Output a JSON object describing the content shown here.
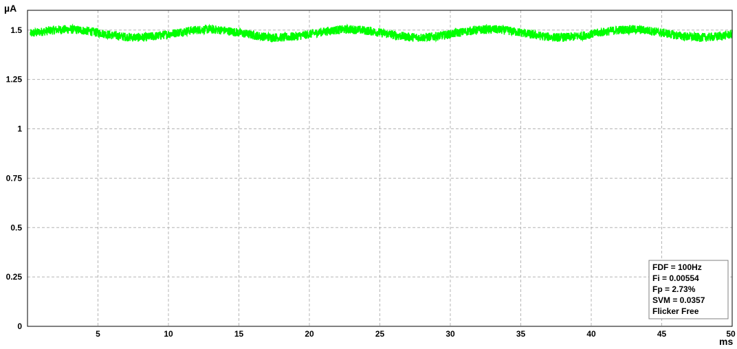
{
  "chart_data": {
    "type": "line",
    "x_unit": "ms",
    "y_unit": "µA",
    "xlim": [
      0,
      50
    ],
    "ylim": [
      0,
      1.6
    ],
    "x_ticks": [
      {
        "value": 5,
        "label": "5"
      },
      {
        "value": 10,
        "label": "10"
      },
      {
        "value": 15,
        "label": "15"
      },
      {
        "value": 20,
        "label": "20"
      },
      {
        "value": 25,
        "label": "25"
      },
      {
        "value": 30,
        "label": "30"
      },
      {
        "value": 35,
        "label": "35"
      },
      {
        "value": 40,
        "label": "40"
      },
      {
        "value": 45,
        "label": "45"
      },
      {
        "value": 50,
        "label": "50"
      }
    ],
    "y_ticks": [
      {
        "value": 0,
        "label": "0"
      },
      {
        "value": 0.25,
        "label": "0.25"
      },
      {
        "value": 0.5,
        "label": "0.5"
      },
      {
        "value": 0.75,
        "label": "0.75"
      },
      {
        "value": 1,
        "label": "1"
      },
      {
        "value": 1.25,
        "label": "1.25"
      },
      {
        "value": 1.5,
        "label": "1.5"
      }
    ],
    "grid": true,
    "series": [
      {
        "color": "#00ff00",
        "mean": 1.483,
        "ripple_amplitude": 0.02,
        "ripple_frequency_hz": 100,
        "noise_band": 0.045,
        "x_start": 0.2,
        "x_end": 50
      }
    ],
    "stats_box": {
      "placement": "bottom-right",
      "lines": [
        "FDF = 100Hz",
        "Fi = 0.00554",
        "Fp = 2.73%",
        "SVM = 0.0357"
      ],
      "verdict": "Flicker Free",
      "verdict_color": "#00ff00"
    }
  }
}
